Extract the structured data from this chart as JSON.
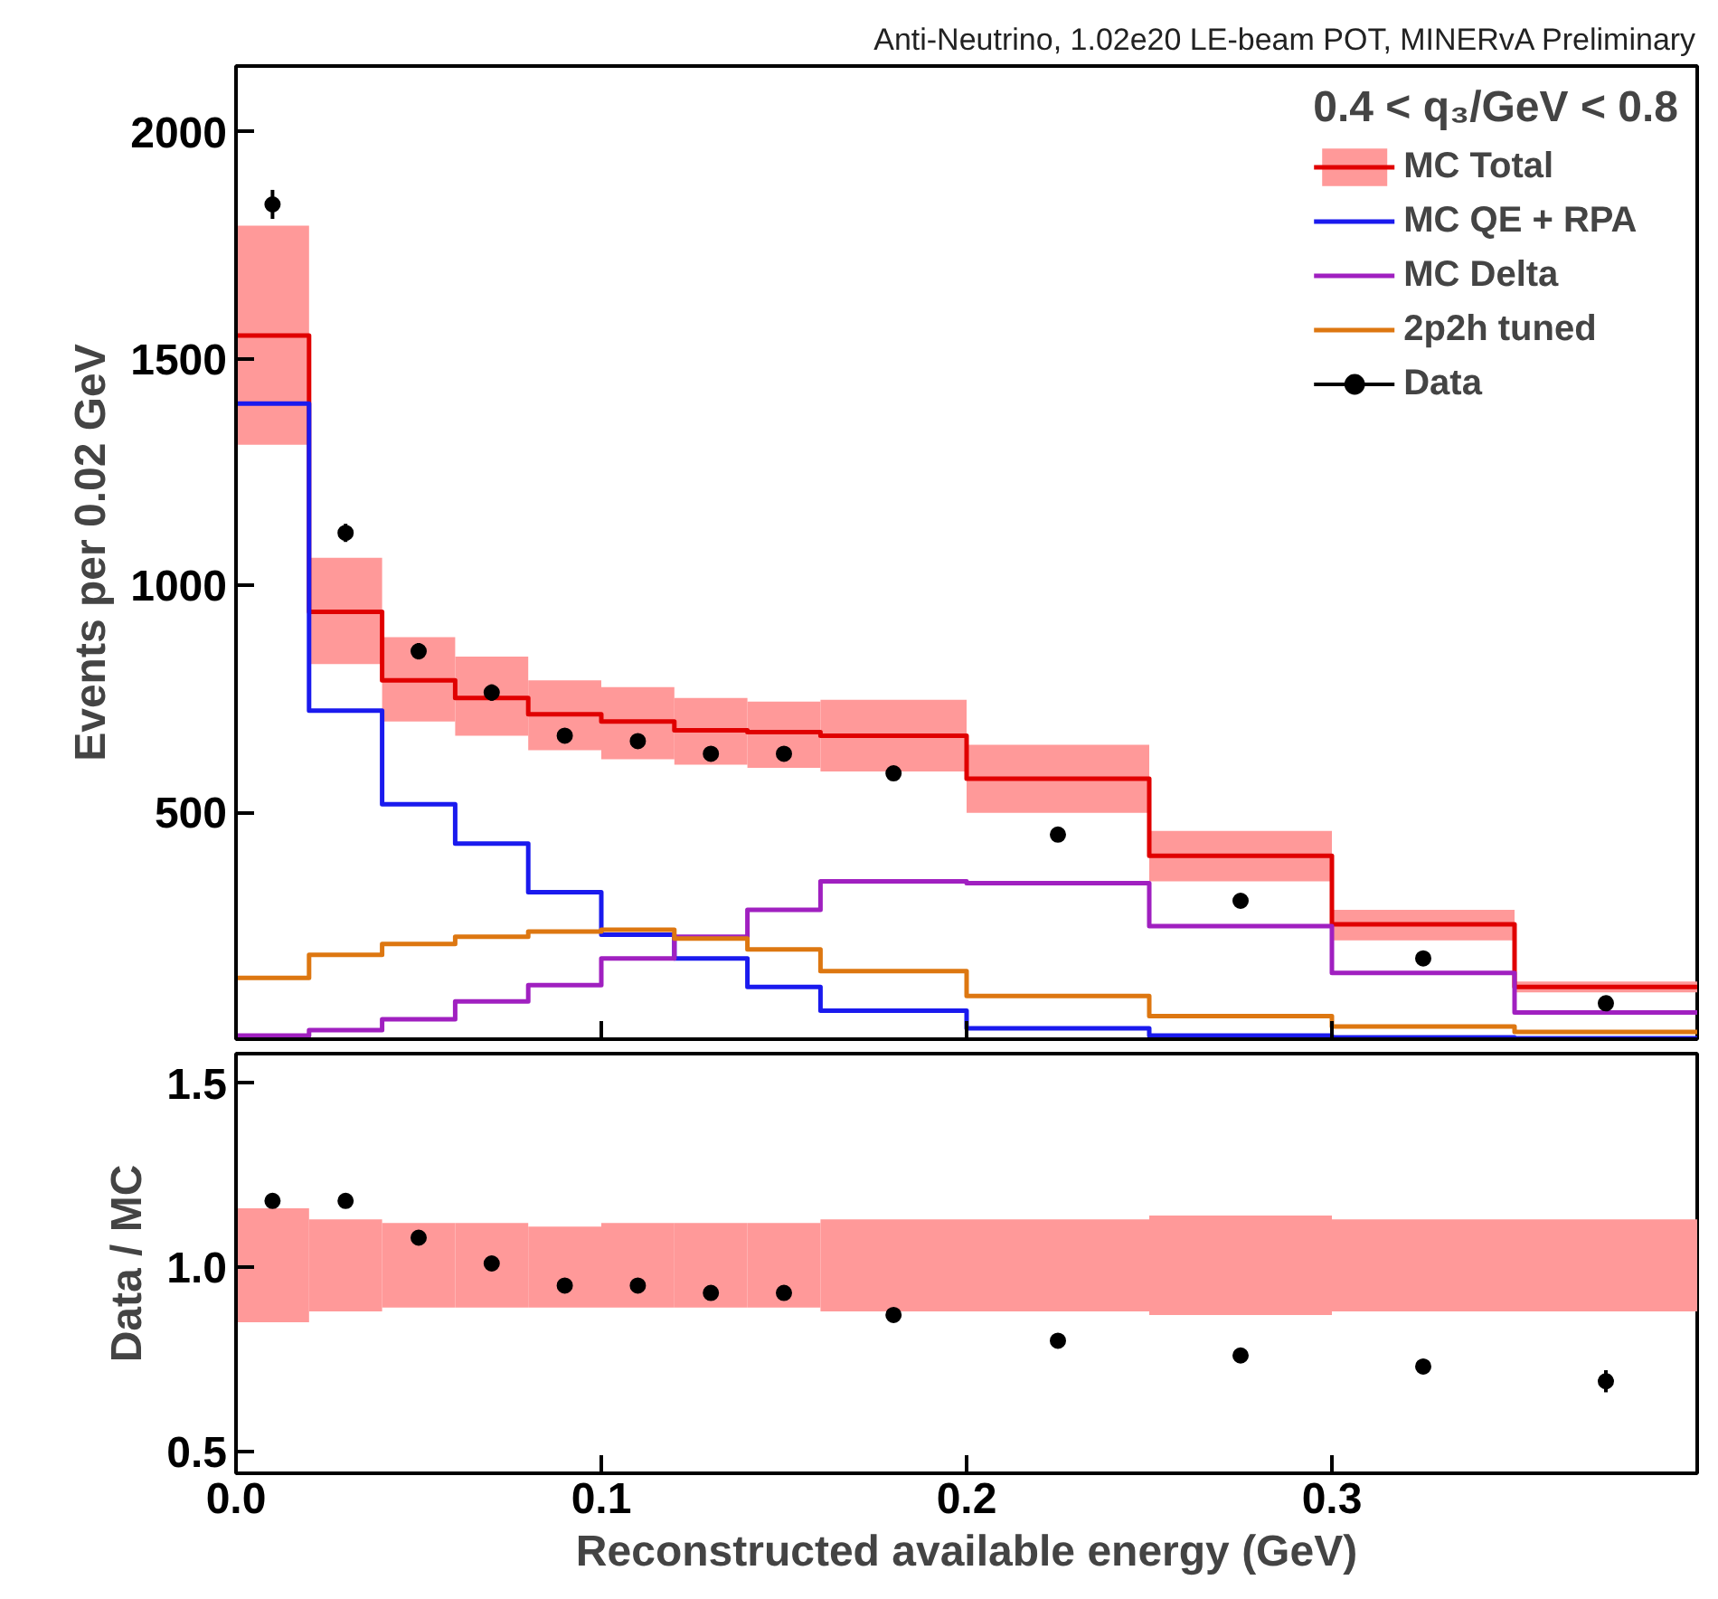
{
  "chart_data": [
    {
      "type": "histogram",
      "title": "Anti-Neutrino, 1.02e20 LE-beam POT, MINERvA Preliminary",
      "legend_title": "0.4 < q₃/GeV < 0.8",
      "ylabel": "Events per 0.02 GeV",
      "bins": [
        0,
        0.02,
        0.04,
        0.06,
        0.08,
        0.1,
        0.12,
        0.14,
        0.16,
        0.2,
        0.25,
        0.3,
        0.35,
        0.4
      ],
      "xlim": [
        0,
        0.4
      ],
      "ylim": [
        0,
        2145
      ],
      "xticks": [
        0,
        0.1,
        0.2,
        0.3
      ],
      "yticks": [
        500,
        1000,
        1500,
        2000
      ],
      "tick_labels": "y",
      "grid": false,
      "legend": "top right",
      "series": [
        {
          "type": "bar",
          "color": "#ff9999",
          "x": [
            0.01,
            0.03,
            0.05,
            0.07,
            0.09,
            0.11,
            0.13,
            0.15,
            0.18,
            0.225,
            0.275,
            0.325,
            0.375
          ],
          "base": [
            1310,
            827,
            700,
            669,
            637,
            617,
            605,
            598,
            590,
            499,
            348,
            218,
            103
          ],
          "values": [
            483,
            234,
            186,
            174,
            154,
            159,
            147,
            146,
            158,
            150,
            111,
            67,
            24
          ]
        },
        {
          "name": "MC Total",
          "color": "#e00000",
          "values": [
            1551,
            942,
            791,
            752,
            716,
            700,
            681,
            677,
            669,
            574,
            404,
            253,
            115
          ]
        },
        {
          "name": "MC QE + RPA",
          "color": "#1a1aee",
          "values": [
            1401,
            724,
            518,
            431,
            324,
            230,
            178,
            115,
            63,
            24,
            8,
            4,
            2
          ]
        },
        {
          "name": "MC Delta",
          "color": "#a020c0",
          "values": [
            8,
            20,
            44,
            83,
            119,
            178,
            226,
            285,
            348,
            344,
            249,
            146,
            59
          ]
        },
        {
          "name": "2p2h tuned",
          "color": "#dd7711",
          "values": [
            135,
            186,
            210,
            226,
            237,
            241,
            222,
            198,
            150,
            95,
            51,
            28,
            16
          ]
        },
        {
          "name": "Data",
          "type": "scatter",
          "color": "#000000",
          "x": [
            0.01,
            0.03,
            0.05,
            0.07,
            0.09,
            0.11,
            0.13,
            0.15,
            0.18,
            0.225,
            0.275,
            0.325,
            0.375
          ],
          "values": [
            1840,
            1116,
            855,
            764,
            669,
            657,
            629,
            629,
            586,
            451,
            305,
            178,
            79
          ],
          "errors": [
            32,
            20,
            18,
            18,
            16,
            16,
            16,
            16,
            12,
            10,
            10,
            10,
            10
          ]
        }
      ]
    },
    {
      "type": "scatter",
      "xlabel": "Reconstructed available energy (GeV)",
      "ylabel": "Data / MC",
      "xlim": [
        0,
        0.4
      ],
      "ylim": [
        0.44,
        1.58
      ],
      "xticks": [
        {
          "value": 0,
          "label": "0.0"
        },
        0.1,
        0.2,
        0.3
      ],
      "yticks": [
        {
          "value": 0.5,
          "label": "0.5"
        },
        {
          "value": 1,
          "label": "1.0"
        },
        {
          "value": 1.5,
          "label": "1.5"
        }
      ],
      "grid": false,
      "series": [
        {
          "type": "bar",
          "color": "#ff9999",
          "x": [
            0.01,
            0.03,
            0.05,
            0.07,
            0.09,
            0.11,
            0.13,
            0.15,
            0.18,
            0.225,
            0.275,
            0.325,
            0.375
          ],
          "base": [
            0.85,
            0.88,
            0.89,
            0.89,
            0.89,
            0.89,
            0.89,
            0.89,
            0.88,
            0.88,
            0.87,
            0.88,
            0.88
          ],
          "values": [
            0.31,
            0.25,
            0.23,
            0.23,
            0.22,
            0.23,
            0.23,
            0.23,
            0.25,
            0.25,
            0.27,
            0.25,
            0.25
          ]
        },
        {
          "type": "scatter",
          "color": "#000000",
          "x": [
            0.01,
            0.03,
            0.05,
            0.07,
            0.09,
            0.11,
            0.13,
            0.15,
            0.18,
            0.225,
            0.275,
            0.325,
            0.375
          ],
          "values": [
            1.18,
            1.18,
            1.08,
            1.01,
            0.95,
            0.95,
            0.93,
            0.93,
            0.87,
            0.8,
            0.76,
            0.73,
            0.69
          ],
          "errors": [
            0.02,
            0.02,
            0.02,
            0.02,
            0.02,
            0.02,
            0.02,
            0.02,
            0.01,
            0.01,
            0.01,
            0.02,
            0.03
          ]
        }
      ]
    }
  ]
}
